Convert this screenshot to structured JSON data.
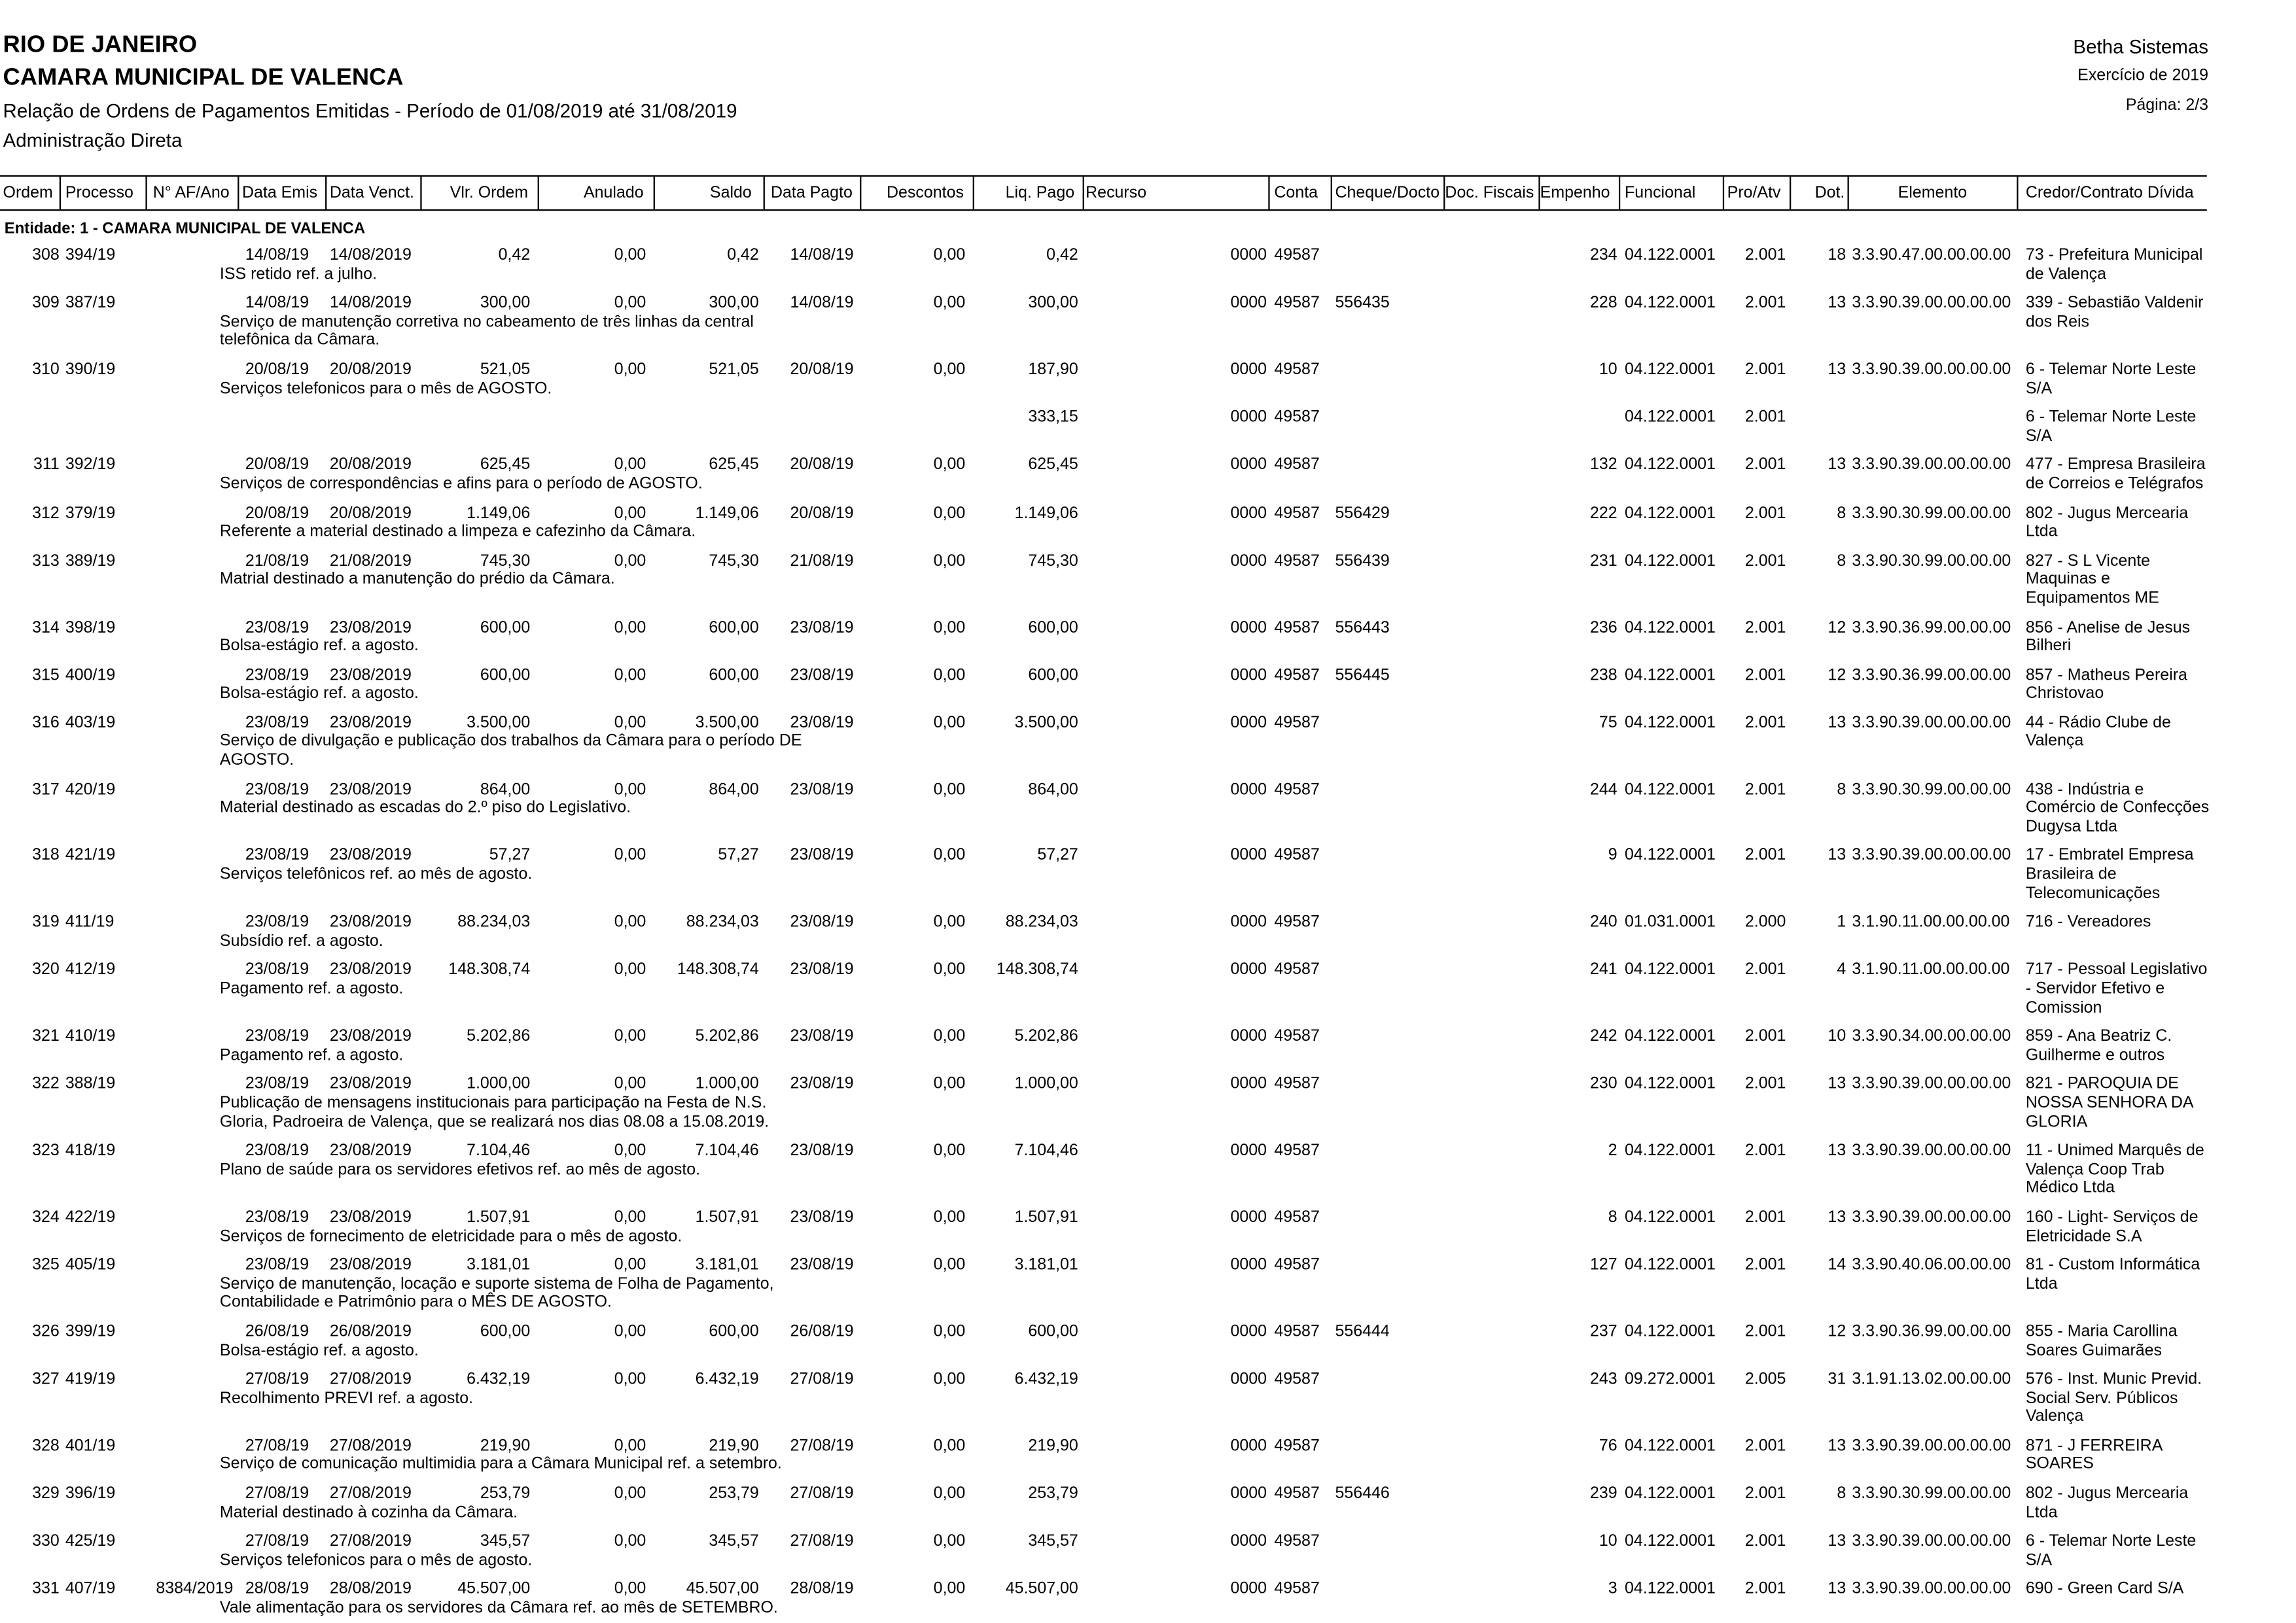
{
  "header": {
    "state": "RIO DE JANEIRO",
    "entity": "CAMARA MUNICIPAL DE VALENCA",
    "report": "Relação de Ordens de Pagamentos Emitidas - Período de 01/08/2019 até 31/08/2019",
    "admin": "Administração Direta",
    "vendor": "Betha Sistemas",
    "year": "Exercício de 2019",
    "page": "Página: 2/3"
  },
  "table": {
    "columns": [
      "Ordem",
      "Processo",
      "N° AF/Ano",
      "Data Emis",
      "Data Venct.",
      "Vlr. Ordem",
      "Anulado",
      "Saldo",
      "Data Pagto",
      "Descontos",
      "Liq. Pago",
      "Recurso",
      "Conta",
      "Cheque/Docto",
      "Doc. Fiscais",
      "Empenho",
      "Funcional",
      "Pro/Atv",
      "Dot.",
      "Elemento",
      "Credor/Contrato Dívida"
    ],
    "group": "Entidade: 1 - CAMARA MUNICIPAL DE VALENCA",
    "rows": [
      {
        "ordem": "308",
        "proc": "394/19",
        "emis": "14/08/19",
        "venc": "14/08/2019",
        "vlr": "0,42",
        "anul": "0,00",
        "saldo": "0,42",
        "pagto": "14/08/19",
        "desc": "0,00",
        "liq": "0,42",
        "rec": "0000",
        "conta": "49587",
        "emp": "234",
        "func": "04.122.0001",
        "pro": "2.001",
        "dot": "18",
        "elem": "3.3.90.47.00.00.00.00",
        "cred": "73 - Prefeitura Municipal de Valença",
        "hist": "ISS retido ref. a julho."
      },
      {
        "ordem": "309",
        "proc": "387/19",
        "emis": "14/08/19",
        "venc": "14/08/2019",
        "vlr": "300,00",
        "anul": "0,00",
        "saldo": "300,00",
        "pagto": "14/08/19",
        "desc": "0,00",
        "liq": "300,00",
        "rec": "0000",
        "conta": "49587",
        "cheq": "556435",
        "emp": "228",
        "func": "04.122.0001",
        "pro": "2.001",
        "dot": "13",
        "elem": "3.3.90.39.00.00.00.00",
        "cred": "339 - Sebastião Valdenir dos Reis",
        "hist": "Serviço de manutenção corretiva no cabeamento de três linhas da central telefônica da  Câmara."
      },
      {
        "ordem": "310",
        "proc": "390/19",
        "emis": "20/08/19",
        "venc": "20/08/2019",
        "vlr": "521,05",
        "anul": "0,00",
        "saldo": "521,05",
        "pagto": "20/08/19",
        "desc": "0,00",
        "liq": "187,90",
        "rec": "0000",
        "conta": "49587",
        "emp": "10",
        "func": "04.122.0001",
        "pro": "2.001",
        "dot": "13",
        "elem": "3.3.90.39.00.00.00.00",
        "cred": "6 - Telemar Norte Leste S/A",
        "hist": "Serviços telefonicos para o mês de AGOSTO.",
        "extra": {
          "liq": "333,15",
          "rec": "0000",
          "conta": "49587",
          "func": "04.122.0001",
          "pro": "2.001",
          "cred": "6 - Telemar Norte Leste S/A"
        }
      },
      {
        "ordem": "311",
        "proc": "392/19",
        "emis": "20/08/19",
        "venc": "20/08/2019",
        "vlr": "625,45",
        "anul": "0,00",
        "saldo": "625,45",
        "pagto": "20/08/19",
        "desc": "0,00",
        "liq": "625,45",
        "rec": "0000",
        "conta": "49587",
        "emp": "132",
        "func": "04.122.0001",
        "pro": "2.001",
        "dot": "13",
        "elem": "3.3.90.39.00.00.00.00",
        "cred": "477 - Empresa Brasileira de Correios e Telégrafos",
        "hist": "Serviços de correspondências e afins para o período de AGOSTO."
      },
      {
        "ordem": "312",
        "proc": "379/19",
        "emis": "20/08/19",
        "venc": "20/08/2019",
        "vlr": "1.149,06",
        "anul": "0,00",
        "saldo": "1.149,06",
        "pagto": "20/08/19",
        "desc": "0,00",
        "liq": "1.149,06",
        "rec": "0000",
        "conta": "49587",
        "cheq": "556429",
        "emp": "222",
        "func": "04.122.0001",
        "pro": "2.001",
        "dot": "8",
        "elem": "3.3.90.30.99.00.00.00",
        "cred": "802 - Jugus Mercearia Ltda",
        "hist": "Referente a material destinado a limpeza e cafezinho da Câmara."
      },
      {
        "ordem": "313",
        "proc": "389/19",
        "emis": "21/08/19",
        "venc": "21/08/2019",
        "vlr": "745,30",
        "anul": "0,00",
        "saldo": "745,30",
        "pagto": "21/08/19",
        "desc": "0,00",
        "liq": "745,30",
        "rec": "0000",
        "conta": "49587",
        "cheq": "556439",
        "emp": "231",
        "func": "04.122.0001",
        "pro": "2.001",
        "dot": "8",
        "elem": "3.3.90.30.99.00.00.00",
        "cred": "827 - S L Vicente Maquinas e Equipamentos ME",
        "hist": "Matrial destinado a manutenção do prédio da Câmara."
      },
      {
        "ordem": "314",
        "proc": "398/19",
        "emis": "23/08/19",
        "venc": "23/08/2019",
        "vlr": "600,00",
        "anul": "0,00",
        "saldo": "600,00",
        "pagto": "23/08/19",
        "desc": "0,00",
        "liq": "600,00",
        "rec": "0000",
        "conta": "49587",
        "cheq": "556443",
        "emp": "236",
        "func": "04.122.0001",
        "pro": "2.001",
        "dot": "12",
        "elem": "3.3.90.36.99.00.00.00",
        "cred": "856 - Anelise de Jesus Bilheri",
        "hist": "Bolsa-estágio ref. a agosto."
      },
      {
        "ordem": "315",
        "proc": "400/19",
        "emis": "23/08/19",
        "venc": "23/08/2019",
        "vlr": "600,00",
        "anul": "0,00",
        "saldo": "600,00",
        "pagto": "23/08/19",
        "desc": "0,00",
        "liq": "600,00",
        "rec": "0000",
        "conta": "49587",
        "cheq": "556445",
        "emp": "238",
        "func": "04.122.0001",
        "pro": "2.001",
        "dot": "12",
        "elem": "3.3.90.36.99.00.00.00",
        "cred": "857 - Matheus Pereira Christovao",
        "hist": "Bolsa-estágio ref. a agosto."
      },
      {
        "ordem": "316",
        "proc": "403/19",
        "emis": "23/08/19",
        "venc": "23/08/2019",
        "vlr": "3.500,00",
        "anul": "0,00",
        "saldo": "3.500,00",
        "pagto": "23/08/19",
        "desc": "0,00",
        "liq": "3.500,00",
        "rec": "0000",
        "conta": "49587",
        "emp": "75",
        "func": "04.122.0001",
        "pro": "2.001",
        "dot": "13",
        "elem": "3.3.90.39.00.00.00.00",
        "cred": "44 - Rádio Clube de Valença",
        "hist": "Serviço de divulgação e publicação dos trabalhos da Câmara para o período DE AGOSTO."
      },
      {
        "ordem": "317",
        "proc": "420/19",
        "emis": "23/08/19",
        "venc": "23/08/2019",
        "vlr": "864,00",
        "anul": "0,00",
        "saldo": "864,00",
        "pagto": "23/08/19",
        "desc": "0,00",
        "liq": "864,00",
        "rec": "0000",
        "conta": "49587",
        "emp": "244",
        "func": "04.122.0001",
        "pro": "2.001",
        "dot": "8",
        "elem": "3.3.90.30.99.00.00.00",
        "cred": "438 - Indústria e Comércio de Confecções Dugysa Ltda",
        "hist": "Material destinado as escadas do 2.º piso do Legislativo."
      },
      {
        "ordem": "318",
        "proc": "421/19",
        "emis": "23/08/19",
        "venc": "23/08/2019",
        "vlr": "57,27",
        "anul": "0,00",
        "saldo": "57,27",
        "pagto": "23/08/19",
        "desc": "0,00",
        "liq": "57,27",
        "rec": "0000",
        "conta": "49587",
        "emp": "9",
        "func": "04.122.0001",
        "pro": "2.001",
        "dot": "13",
        "elem": "3.3.90.39.00.00.00.00",
        "cred": "17 - Embratel Empresa Brasileira de Telecomunicações",
        "hist": "Serviços telefônicos ref. ao mês de agosto."
      },
      {
        "ordem": "319",
        "proc": "411/19",
        "emis": "23/08/19",
        "venc": "23/08/2019",
        "vlr": "88.234,03",
        "anul": "0,00",
        "saldo": "88.234,03",
        "pagto": "23/08/19",
        "desc": "0,00",
        "liq": "88.234,03",
        "rec": "0000",
        "conta": "49587",
        "emp": "240",
        "func": "01.031.0001",
        "pro": "2.000",
        "dot": "1",
        "elem": "3.1.90.11.00.00.00.00",
        "cred": "716 - Vereadores",
        "hist": "Subsídio ref. a agosto."
      },
      {
        "ordem": "320",
        "proc": "412/19",
        "emis": "23/08/19",
        "venc": "23/08/2019",
        "vlr": "148.308,74",
        "anul": "0,00",
        "saldo": "148.308,74",
        "pagto": "23/08/19",
        "desc": "0,00",
        "liq": "148.308,74",
        "rec": "0000",
        "conta": "49587",
        "emp": "241",
        "func": "04.122.0001",
        "pro": "2.001",
        "dot": "4",
        "elem": "3.1.90.11.00.00.00.00",
        "cred": "717 - Pessoal Legislativo - Servidor Efetivo e Comission",
        "hist": "Pagamento ref. a agosto."
      },
      {
        "ordem": "321",
        "proc": "410/19",
        "emis": "23/08/19",
        "venc": "23/08/2019",
        "vlr": "5.202,86",
        "anul": "0,00",
        "saldo": "5.202,86",
        "pagto": "23/08/19",
        "desc": "0,00",
        "liq": "5.202,86",
        "rec": "0000",
        "conta": "49587",
        "emp": "242",
        "func": "04.122.0001",
        "pro": "2.001",
        "dot": "10",
        "elem": "3.3.90.34.00.00.00.00",
        "cred": "859 - Ana Beatriz C. Guilherme e outros",
        "hist": "Pagamento ref. a agosto."
      },
      {
        "ordem": "322",
        "proc": "388/19",
        "emis": "23/08/19",
        "venc": "23/08/2019",
        "vlr": "1.000,00",
        "anul": "0,00",
        "saldo": "1.000,00",
        "pagto": "23/08/19",
        "desc": "0,00",
        "liq": "1.000,00",
        "rec": "0000",
        "conta": "49587",
        "emp": "230",
        "func": "04.122.0001",
        "pro": "2.001",
        "dot": "13",
        "elem": "3.3.90.39.00.00.00.00",
        "cred": "821 - PAROQUIA DE NOSSA SENHORA DA GLORIA",
        "hist": "Publicação de mensagens institucionais para participação na Festa de N.S. Gloria, Padroeira de Valença,  que se realizará nos dias 08.08 a 15.08.2019."
      },
      {
        "ordem": "323",
        "proc": "418/19",
        "emis": "23/08/19",
        "venc": "23/08/2019",
        "vlr": "7.104,46",
        "anul": "0,00",
        "saldo": "7.104,46",
        "pagto": "23/08/19",
        "desc": "0,00",
        "liq": "7.104,46",
        "rec": "0000",
        "conta": "49587",
        "emp": "2",
        "func": "04.122.0001",
        "pro": "2.001",
        "dot": "13",
        "elem": "3.3.90.39.00.00.00.00",
        "cred": "11 - Unimed Marquês de Valença Coop Trab Médico Ltda",
        "hist": "Plano de saúde para os servidores efetivos ref. ao mês de agosto."
      },
      {
        "ordem": "324",
        "proc": "422/19",
        "emis": "23/08/19",
        "venc": "23/08/2019",
        "vlr": "1.507,91",
        "anul": "0,00",
        "saldo": "1.507,91",
        "pagto": "23/08/19",
        "desc": "0,00",
        "liq": "1.507,91",
        "rec": "0000",
        "conta": "49587",
        "emp": "8",
        "func": "04.122.0001",
        "pro": "2.001",
        "dot": "13",
        "elem": "3.3.90.39.00.00.00.00",
        "cred": "160 - Light- Serviços de Eletricidade S.A",
        "hist": "Serviços de fornecimento de eletricidade para o mês de agosto."
      },
      {
        "ordem": "325",
        "proc": "405/19",
        "emis": "23/08/19",
        "venc": "23/08/2019",
        "vlr": "3.181,01",
        "anul": "0,00",
        "saldo": "3.181,01",
        "pagto": "23/08/19",
        "desc": "0,00",
        "liq": "3.181,01",
        "rec": "0000",
        "conta": "49587",
        "emp": "127",
        "func": "04.122.0001",
        "pro": "2.001",
        "dot": "14",
        "elem": "3.3.90.40.06.00.00.00",
        "cred": "81 - Custom Informática Ltda",
        "hist": "Serviço de manutenção, locação e suporte sistema de Folha de Pagamento, Contabilidade e Patrimônio para o MÊS DE AGOSTO."
      },
      {
        "ordem": "326",
        "proc": "399/19",
        "emis": "26/08/19",
        "venc": "26/08/2019",
        "vlr": "600,00",
        "anul": "0,00",
        "saldo": "600,00",
        "pagto": "26/08/19",
        "desc": "0,00",
        "liq": "600,00",
        "rec": "0000",
        "conta": "49587",
        "cheq": "556444",
        "emp": "237",
        "func": "04.122.0001",
        "pro": "2.001",
        "dot": "12",
        "elem": "3.3.90.36.99.00.00.00",
        "cred": "855 - Maria Carollina Soares Guimarães",
        "hist": "Bolsa-estágio ref. a agosto."
      },
      {
        "ordem": "327",
        "proc": "419/19",
        "emis": "27/08/19",
        "venc": "27/08/2019",
        "vlr": "6.432,19",
        "anul": "0,00",
        "saldo": "6.432,19",
        "pagto": "27/08/19",
        "desc": "0,00",
        "liq": "6.432,19",
        "rec": "0000",
        "conta": "49587",
        "emp": "243",
        "func": "09.272.0001",
        "pro": "2.005",
        "dot": "31",
        "elem": "3.1.91.13.02.00.00.00",
        "cred": "576 - Inst. Munic Previd. Social Serv. Públicos Valença",
        "hist": "Recolhimento PREVI ref. a agosto."
      },
      {
        "ordem": "328",
        "proc": "401/19",
        "emis": "27/08/19",
        "venc": "27/08/2019",
        "vlr": "219,90",
        "anul": "0,00",
        "saldo": "219,90",
        "pagto": "27/08/19",
        "desc": "0,00",
        "liq": "219,90",
        "rec": "0000",
        "conta": "49587",
        "emp": "76",
        "func": "04.122.0001",
        "pro": "2.001",
        "dot": "13",
        "elem": "3.3.90.39.00.00.00.00",
        "cred": "871 - J FERREIRA SOARES",
        "hist": "Serviço de comunicação multimidia para a Câmara Municipal ref. a setembro."
      },
      {
        "ordem": "329",
        "proc": "396/19",
        "emis": "27/08/19",
        "venc": "27/08/2019",
        "vlr": "253,79",
        "anul": "0,00",
        "saldo": "253,79",
        "pagto": "27/08/19",
        "desc": "0,00",
        "liq": "253,79",
        "rec": "0000",
        "conta": "49587",
        "cheq": "556446",
        "emp": "239",
        "func": "04.122.0001",
        "pro": "2.001",
        "dot": "8",
        "elem": "3.3.90.30.99.00.00.00",
        "cred": "802 - Jugus Mercearia Ltda",
        "hist": "Material destinado à cozinha da Câmara."
      },
      {
        "ordem": "330",
        "proc": "425/19",
        "emis": "27/08/19",
        "venc": "27/08/2019",
        "vlr": "345,57",
        "anul": "0,00",
        "saldo": "345,57",
        "pagto": "27/08/19",
        "desc": "0,00",
        "liq": "345,57",
        "rec": "0000",
        "conta": "49587",
        "emp": "10",
        "func": "04.122.0001",
        "pro": "2.001",
        "dot": "13",
        "elem": "3.3.90.39.00.00.00.00",
        "cred": "6 - Telemar Norte Leste S/A",
        "hist": "Serviços telefonicos para o mês de agosto."
      },
      {
        "ordem": "331",
        "proc": "407/19",
        "af": "8384/2019",
        "emis": "28/08/19",
        "venc": "28/08/2019",
        "vlr": "45.507,00",
        "anul": "0,00",
        "saldo": "45.507,00",
        "pagto": "28/08/19",
        "desc": "0,00",
        "liq": "45.507,00",
        "rec": "0000",
        "conta": "49587",
        "emp": "3",
        "func": "04.122.0001",
        "pro": "2.001",
        "dot": "13",
        "elem": "3.3.90.39.00.00.00.00",
        "cred": "690 - Green Card S/A",
        "hist": "Vale alimentação para os servidores da Câmara ref. ao mês de SETEMBRO."
      }
    ]
  }
}
